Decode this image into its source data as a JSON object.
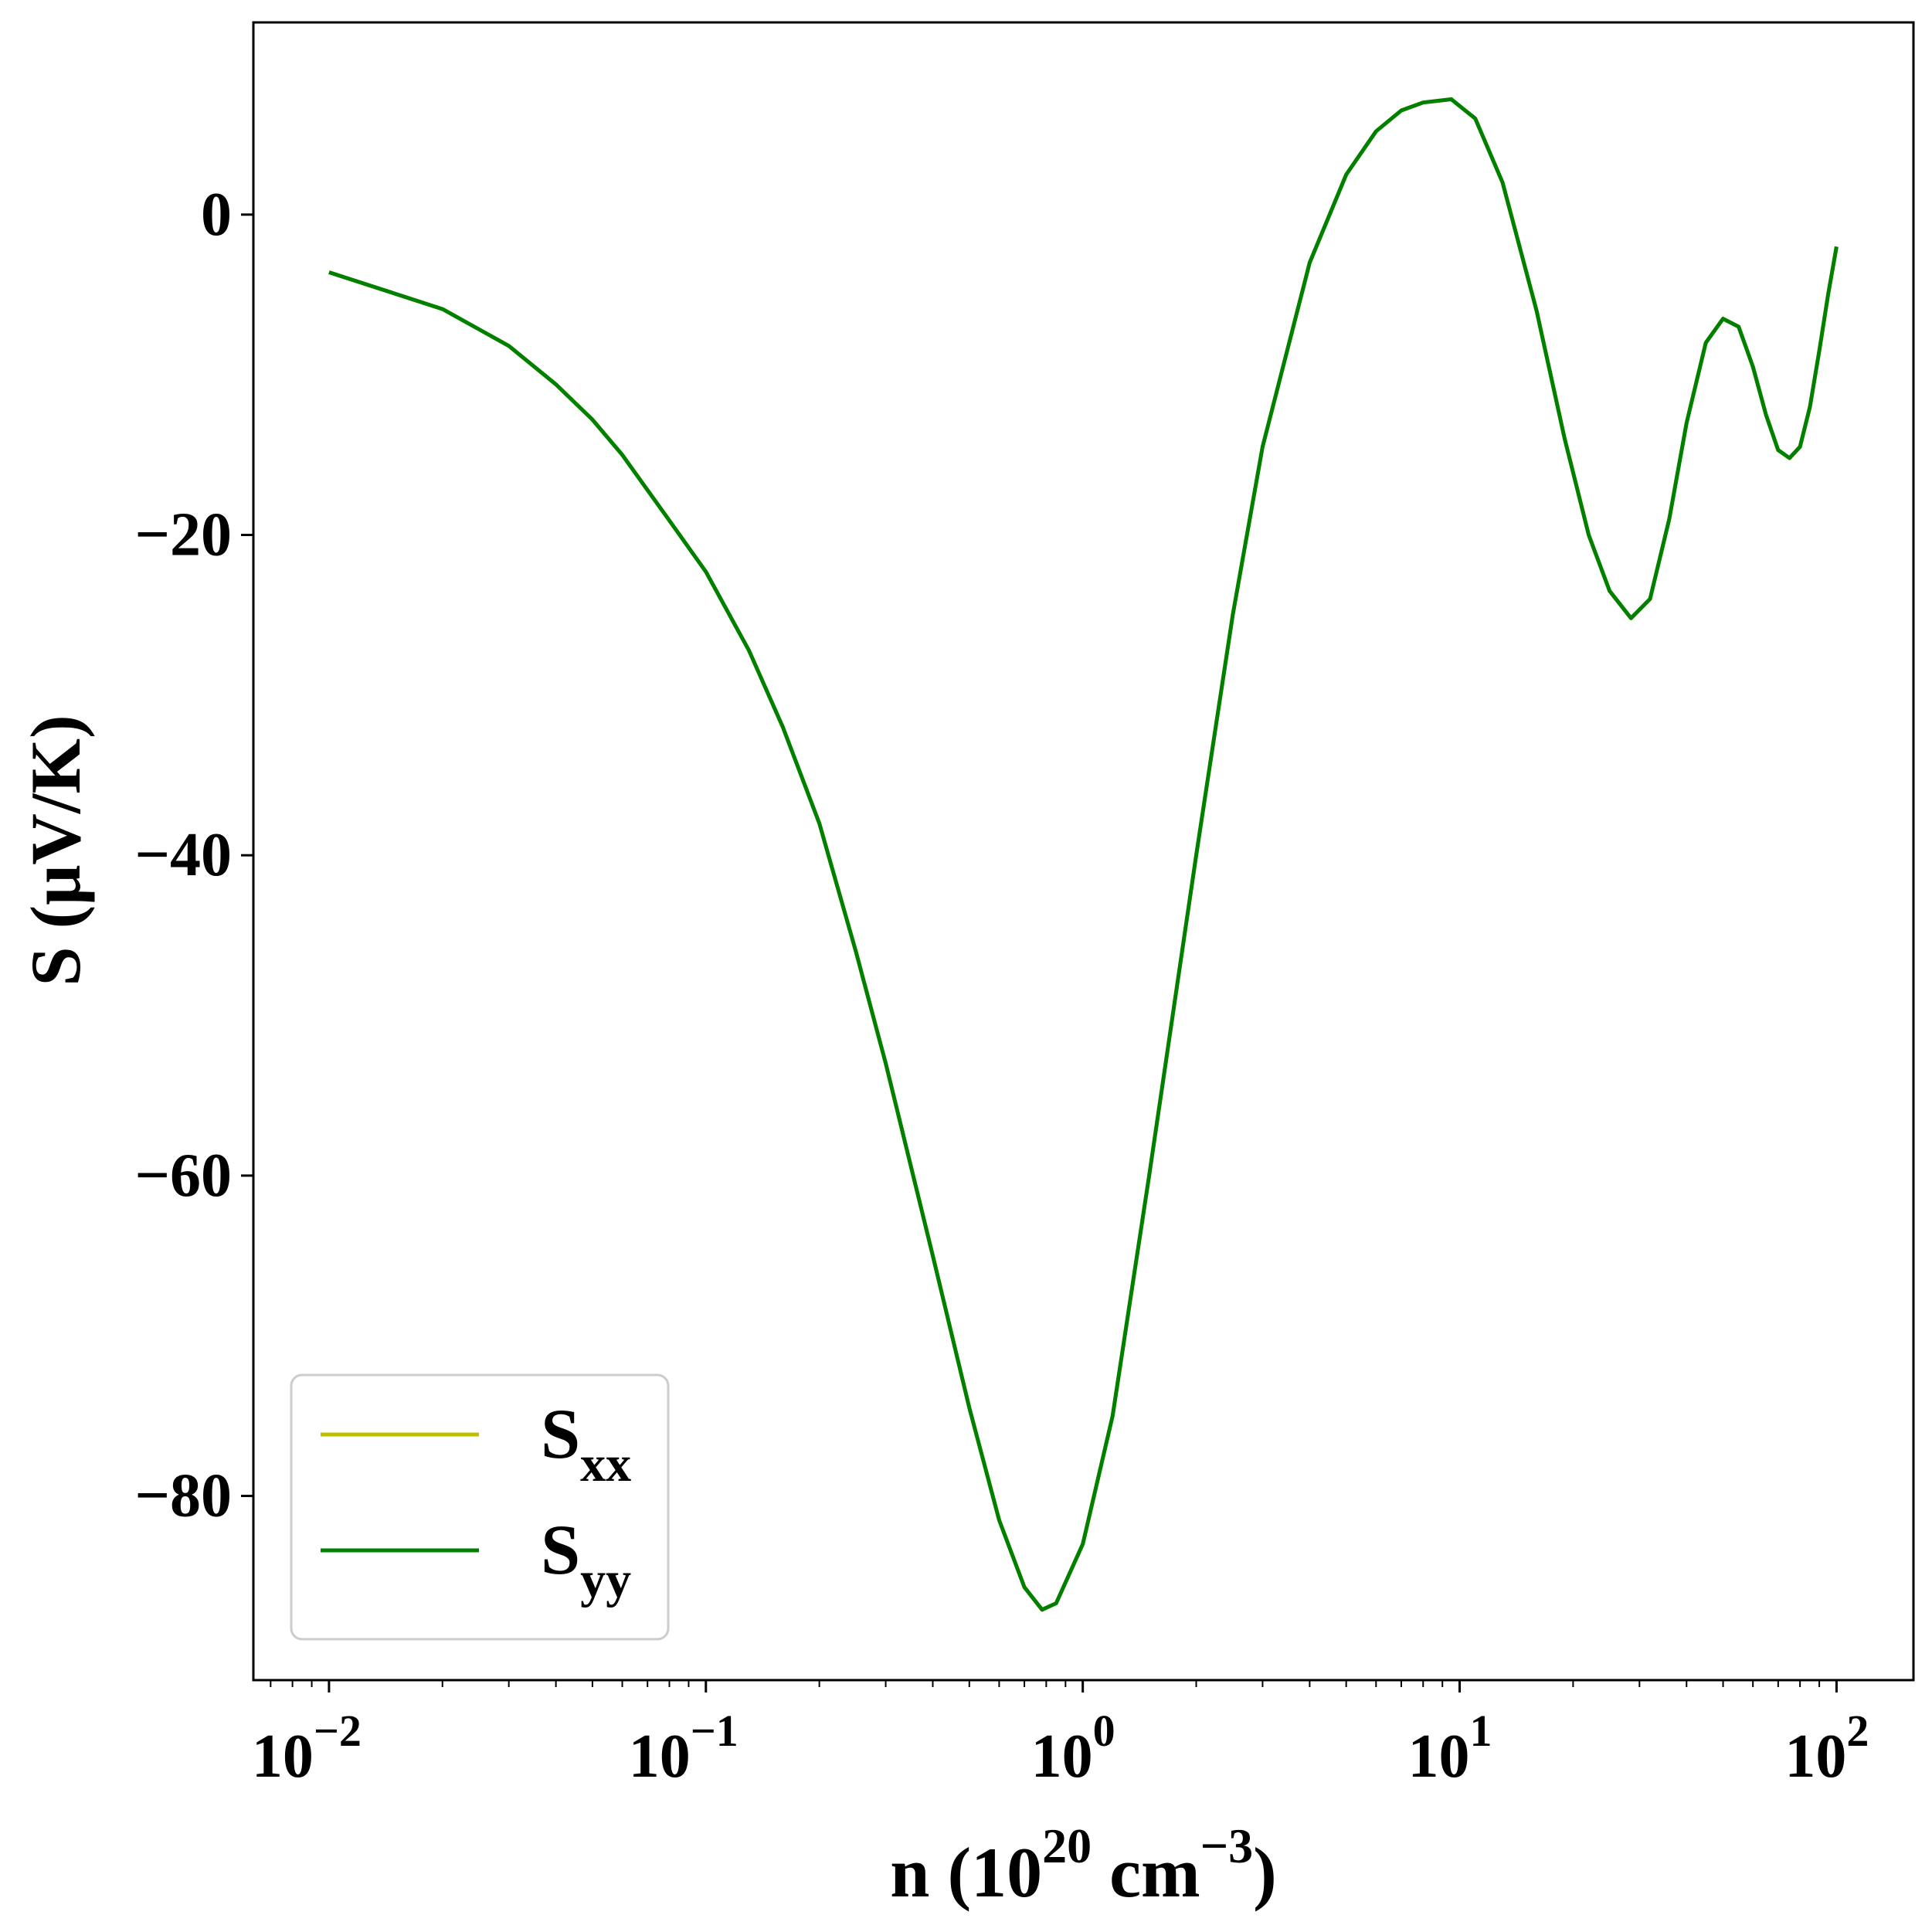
{
  "chart_data": {
    "type": "line",
    "title": "",
    "xlabel": {
      "base": "n (10",
      "exp": "20",
      "mid": " cm",
      "exp2": "−3",
      "tail": ")"
    },
    "ylabel": "S (μV/K)",
    "xscale": "log",
    "xlim": [
      0.0063,
      160
    ],
    "ylim": [
      -91.5,
      12
    ],
    "grid": false,
    "legend_placement": "lower-left",
    "x_ticks": [
      {
        "value": 0.01,
        "base": "10",
        "exp": "−2"
      },
      {
        "value": 0.1,
        "base": "10",
        "exp": "−1"
      },
      {
        "value": 1,
        "base": "10",
        "exp": "0"
      },
      {
        "value": 10,
        "base": "10",
        "exp": "1"
      },
      {
        "value": 100,
        "base": "10",
        "exp": "2"
      }
    ],
    "y_ticks": [
      {
        "value": 0,
        "label": "0"
      },
      {
        "value": -20,
        "label": "−20"
      },
      {
        "value": -40,
        "label": "−40"
      },
      {
        "value": -60,
        "label": "−60"
      },
      {
        "value": -80,
        "label": "−80"
      }
    ],
    "series": [
      {
        "name": "S",
        "sub": "xx",
        "color": "#bfbf00",
        "x": [
          0.01,
          0.02,
          0.03,
          0.04,
          0.05,
          0.06,
          0.07,
          0.08,
          0.1,
          0.13,
          0.16,
          0.2,
          0.25,
          0.3,
          0.4,
          0.5,
          0.6,
          0.7,
          0.78,
          0.85,
          1.0,
          1.2,
          1.5,
          2.0,
          2.5,
          3.0,
          4.0,
          5.0,
          6.0,
          7.0,
          8.0,
          9.5,
          11,
          13,
          16,
          19,
          22,
          25,
          28.5,
          32,
          36,
          40,
          45,
          50,
          55,
          60,
          65,
          70,
          75,
          80,
          85,
          90,
          95,
          100
        ],
        "y": [
          -3.6,
          -5.9,
          -8.2,
          -10.6,
          -12.8,
          -15.0,
          -17.2,
          -19.1,
          -22.3,
          -27.2,
          -32.0,
          -38.0,
          -46.0,
          -53.0,
          -65.0,
          -74.5,
          -81.5,
          -85.7,
          -87.1,
          -86.7,
          -83.0,
          -75.0,
          -60.0,
          -40.0,
          -25.0,
          -14.5,
          -3.0,
          2.5,
          5.2,
          6.5,
          7.0,
          7.2,
          6.0,
          2.0,
          -6.0,
          -14.0,
          -20.0,
          -23.5,
          -25.2,
          -24.0,
          -19.0,
          -13.0,
          -8.0,
          -6.5,
          -7.0,
          -9.5,
          -12.5,
          -14.7,
          -15.2,
          -14.5,
          -12.0,
          -8.5,
          -5.0,
          -2.0
        ]
      },
      {
        "name": "S",
        "sub": "yy",
        "color": "#008000",
        "x": [
          0.01,
          0.02,
          0.03,
          0.04,
          0.05,
          0.06,
          0.07,
          0.08,
          0.1,
          0.13,
          0.16,
          0.2,
          0.25,
          0.3,
          0.4,
          0.5,
          0.6,
          0.7,
          0.78,
          0.85,
          1.0,
          1.2,
          1.5,
          2.0,
          2.5,
          3.0,
          4.0,
          5.0,
          6.0,
          7.0,
          8.0,
          9.5,
          11,
          13,
          16,
          19,
          22,
          25,
          28.5,
          32,
          36,
          40,
          45,
          50,
          55,
          60,
          65,
          70,
          75,
          80,
          85,
          90,
          95,
          100
        ],
        "y": [
          -3.6,
          -5.9,
          -8.2,
          -10.6,
          -12.8,
          -15.0,
          -17.2,
          -19.1,
          -22.3,
          -27.2,
          -32.0,
          -38.0,
          -46.0,
          -53.0,
          -65.0,
          -74.5,
          -81.5,
          -85.7,
          -87.1,
          -86.7,
          -83.0,
          -75.0,
          -60.0,
          -40.0,
          -25.0,
          -14.5,
          -3.0,
          2.5,
          5.2,
          6.5,
          7.0,
          7.2,
          6.0,
          2.0,
          -6.0,
          -14.0,
          -20.0,
          -23.5,
          -25.2,
          -24.0,
          -19.0,
          -13.0,
          -8.0,
          -6.5,
          -7.0,
          -9.5,
          -12.5,
          -14.7,
          -15.2,
          -14.5,
          -12.0,
          -8.5,
          -5.0,
          -2.0
        ]
      }
    ]
  }
}
